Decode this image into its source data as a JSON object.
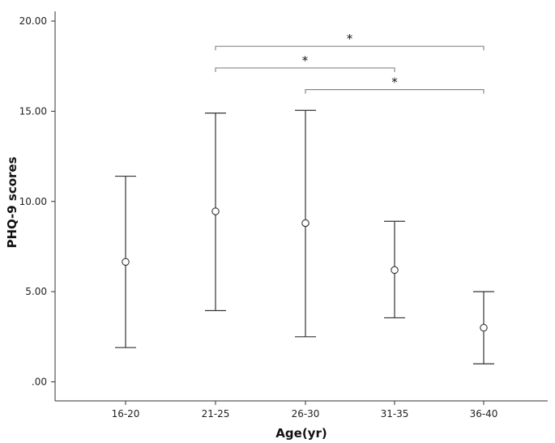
{
  "chart_data": {
    "type": "errorbar",
    "title": "",
    "xlabel": "Age(yr)",
    "ylabel": "PHQ-9 scores",
    "ylim": [
      0,
      20
    ],
    "y_ticks": [
      ".00",
      "5.00",
      "10.00",
      "15.00",
      "20.00"
    ],
    "y_tick_values": [
      0,
      5,
      10,
      15,
      20
    ],
    "categories": [
      "16-20",
      "21-25",
      "26-30",
      "31-35",
      "36-40"
    ],
    "series": [
      {
        "mean": [
          6.65,
          9.45,
          8.8,
          6.2,
          3.0
        ],
        "lower": [
          1.9,
          3.95,
          2.5,
          3.55,
          1.0
        ],
        "upper": [
          11.4,
          14.9,
          15.05,
          8.9,
          5.0
        ]
      }
    ],
    "significance": [
      {
        "from": "21-25",
        "to": "36-40",
        "label": "*",
        "y": 18.6
      },
      {
        "from": "21-25",
        "to": "31-35",
        "label": "*",
        "y": 17.4
      },
      {
        "from": "26-30",
        "to": "36-40",
        "label": "*",
        "y": 16.2
      }
    ],
    "grid": false,
    "legend": "none"
  }
}
